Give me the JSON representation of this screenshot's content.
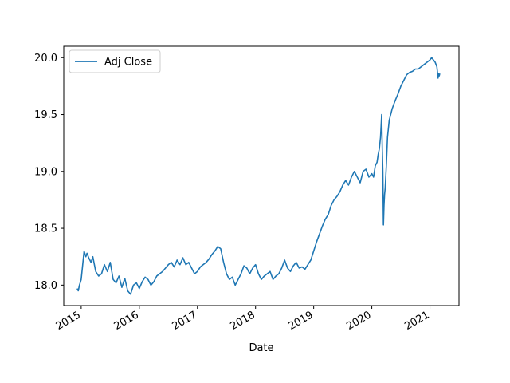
{
  "chart_data": {
    "type": "line",
    "title": "",
    "xlabel": "Date",
    "ylabel": "",
    "xlim": [
      2014.7,
      2021.5
    ],
    "ylim": [
      17.82,
      20.1
    ],
    "grid": false,
    "legend_position": "top-left",
    "x_ticks": [
      {
        "value": 2015,
        "label": "2015"
      },
      {
        "value": 2016,
        "label": "2016"
      },
      {
        "value": 2017,
        "label": "2017"
      },
      {
        "value": 2018,
        "label": "2018"
      },
      {
        "value": 2019,
        "label": "2019"
      },
      {
        "value": 2020,
        "label": "2020"
      },
      {
        "value": 2021,
        "label": "2021"
      }
    ],
    "y_ticks": [
      {
        "value": 18.0,
        "label": "18.0"
      },
      {
        "value": 18.5,
        "label": "18.5"
      },
      {
        "value": 19.0,
        "label": "19.0"
      },
      {
        "value": 19.5,
        "label": "19.5"
      },
      {
        "value": 20.0,
        "label": "20.0"
      }
    ],
    "series": [
      {
        "name": "Adj Close",
        "color": "#1f77b4",
        "x": [
          2014.93,
          2014.95,
          2014.97,
          2015.0,
          2015.02,
          2015.05,
          2015.08,
          2015.1,
          2015.13,
          2015.17,
          2015.2,
          2015.25,
          2015.3,
          2015.35,
          2015.4,
          2015.45,
          2015.5,
          2015.55,
          2015.6,
          2015.65,
          2015.7,
          2015.75,
          2015.8,
          2015.85,
          2015.9,
          2015.95,
          2016.0,
          2016.05,
          2016.1,
          2016.15,
          2016.2,
          2016.25,
          2016.3,
          2016.35,
          2016.4,
          2016.45,
          2016.5,
          2016.55,
          2016.6,
          2016.65,
          2016.7,
          2016.75,
          2016.8,
          2016.85,
          2016.9,
          2016.95,
          2017.0,
          2017.05,
          2017.1,
          2017.15,
          2017.2,
          2017.25,
          2017.3,
          2017.35,
          2017.4,
          2017.45,
          2017.5,
          2017.55,
          2017.6,
          2017.65,
          2017.7,
          2017.75,
          2017.8,
          2017.85,
          2017.9,
          2017.95,
          2018.0,
          2018.05,
          2018.1,
          2018.15,
          2018.2,
          2018.25,
          2018.3,
          2018.35,
          2018.4,
          2018.45,
          2018.5,
          2018.55,
          2018.6,
          2018.65,
          2018.7,
          2018.75,
          2018.8,
          2018.85,
          2018.9,
          2018.95,
          2019.0,
          2019.05,
          2019.1,
          2019.15,
          2019.2,
          2019.25,
          2019.3,
          2019.35,
          2019.4,
          2019.45,
          2019.5,
          2019.55,
          2019.6,
          2019.65,
          2019.7,
          2019.75,
          2019.8,
          2019.85,
          2019.9,
          2019.95,
          2020.0,
          2020.03,
          2020.06,
          2020.09,
          2020.11,
          2020.13,
          2020.15,
          2020.17,
          2020.18,
          2020.19,
          2020.2,
          2020.21,
          2020.22,
          2020.23,
          2020.25,
          2020.27,
          2020.3,
          2020.35,
          2020.4,
          2020.45,
          2020.5,
          2020.55,
          2020.6,
          2020.65,
          2020.7,
          2020.75,
          2020.8,
          2020.85,
          2020.9,
          2020.95,
          2021.0,
          2021.03,
          2021.06,
          2021.09,
          2021.12,
          2021.14,
          2021.15,
          2021.16,
          2021.17
        ],
        "y": [
          17.97,
          17.95,
          18.0,
          18.05,
          18.15,
          18.3,
          18.25,
          18.28,
          18.24,
          18.2,
          18.25,
          18.12,
          18.08,
          18.1,
          18.18,
          18.12,
          18.2,
          18.05,
          18.02,
          18.08,
          17.98,
          18.06,
          17.95,
          17.92,
          18.0,
          18.02,
          17.97,
          18.03,
          18.07,
          18.05,
          18.0,
          18.03,
          18.08,
          18.1,
          18.12,
          18.15,
          18.18,
          18.2,
          18.16,
          18.22,
          18.18,
          18.24,
          18.18,
          18.2,
          18.15,
          18.1,
          18.12,
          18.16,
          18.18,
          18.2,
          18.23,
          18.27,
          18.3,
          18.34,
          18.32,
          18.2,
          18.1,
          18.05,
          18.07,
          18.0,
          18.05,
          18.1,
          18.17,
          18.15,
          18.1,
          18.15,
          18.18,
          18.1,
          18.05,
          18.08,
          18.1,
          18.12,
          18.05,
          18.08,
          18.1,
          18.15,
          18.22,
          18.15,
          18.12,
          18.17,
          18.2,
          18.15,
          18.16,
          18.14,
          18.18,
          18.22,
          18.3,
          18.38,
          18.45,
          18.52,
          18.58,
          18.62,
          18.7,
          18.75,
          18.78,
          18.82,
          18.88,
          18.92,
          18.88,
          18.95,
          19.0,
          18.95,
          18.9,
          19.0,
          19.02,
          18.95,
          18.98,
          18.95,
          19.05,
          19.08,
          19.15,
          19.2,
          19.3,
          19.5,
          19.2,
          19.0,
          18.53,
          18.7,
          18.8,
          18.85,
          19.05,
          19.3,
          19.45,
          19.55,
          19.62,
          19.68,
          19.75,
          19.8,
          19.85,
          19.87,
          19.88,
          19.9,
          19.9,
          19.92,
          19.94,
          19.96,
          19.98,
          20.0,
          19.98,
          19.96,
          19.92,
          19.82,
          19.86,
          19.84,
          19.86
        ]
      }
    ]
  }
}
